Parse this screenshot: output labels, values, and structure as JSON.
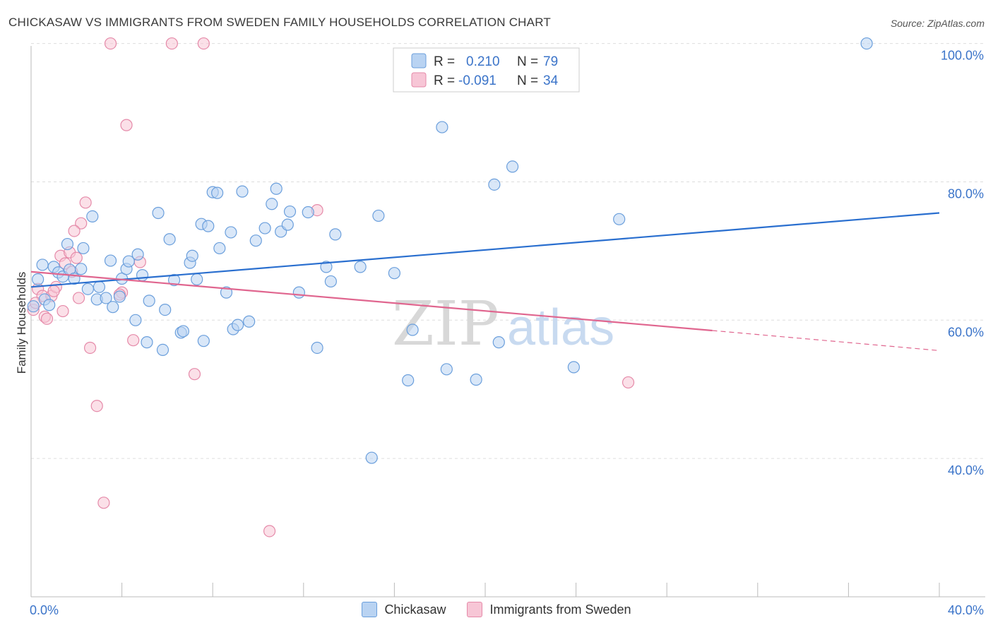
{
  "title": "CHICKASAW VS IMMIGRANTS FROM SWEDEN FAMILY HOUSEHOLDS CORRELATION CHART",
  "source": "Source: ZipAtlas.com",
  "watermark": {
    "zip": "ZIP",
    "atlas": "atlas"
  },
  "colors": {
    "blue_fill": "#b9d3f2",
    "blue_stroke": "#6b9fdc",
    "blue_line": "#2a6fcf",
    "pink_fill": "#f7c6d6",
    "pink_stroke": "#e58aa9",
    "pink_line": "#e0668f",
    "axis_text": "#3b74c9",
    "grid": "#dddddd"
  },
  "stats_legend": [
    {
      "r_label": "R =",
      "r_value": "0.210",
      "n_label": "N =",
      "n_value": "79",
      "color": "blue"
    },
    {
      "r_label": "R =",
      "r_value": "-0.091",
      "n_label": "N =",
      "n_value": "34",
      "color": "pink"
    }
  ],
  "chart_data": {
    "type": "scatter",
    "title": "CHICKASAW VS IMMIGRANTS FROM SWEDEN FAMILY HOUSEHOLDS CORRELATION CHART",
    "xlabel": "",
    "ylabel": "Family Households",
    "xlim": [
      0,
      40
    ],
    "ylim": [
      20,
      102
    ],
    "x_tick_labels": [
      "0.0%",
      "40.0%"
    ],
    "y_ticks": [
      40,
      60,
      80,
      100
    ],
    "y_tick_labels": [
      "40.0%",
      "60.0%",
      "80.0%",
      "100.0%"
    ],
    "grid": true,
    "series": [
      {
        "name": "Chickasaw",
        "color": "blue",
        "points": [
          [
            0.3,
            65.9
          ],
          [
            0.5,
            68.0
          ],
          [
            0.6,
            63.0
          ],
          [
            0.8,
            62.2
          ],
          [
            1.0,
            67.7
          ],
          [
            1.2,
            66.9
          ],
          [
            1.4,
            66.3
          ],
          [
            1.6,
            71.0
          ],
          [
            1.7,
            67.3
          ],
          [
            1.9,
            66.0
          ],
          [
            2.2,
            67.4
          ],
          [
            2.3,
            70.4
          ],
          [
            2.5,
            64.5
          ],
          [
            2.7,
            75.0
          ],
          [
            2.9,
            63.0
          ],
          [
            3.0,
            64.8
          ],
          [
            3.3,
            63.2
          ],
          [
            3.5,
            68.6
          ],
          [
            3.6,
            61.9
          ],
          [
            3.9,
            63.4
          ],
          [
            4.0,
            66.0
          ],
          [
            4.2,
            67.4
          ],
          [
            4.3,
            68.5
          ],
          [
            4.6,
            60.0
          ],
          [
            4.7,
            69.5
          ],
          [
            4.9,
            66.5
          ],
          [
            5.1,
            56.8
          ],
          [
            5.2,
            62.8
          ],
          [
            5.6,
            75.5
          ],
          [
            5.8,
            55.7
          ],
          [
            5.9,
            61.5
          ],
          [
            6.1,
            71.7
          ],
          [
            6.3,
            65.8
          ],
          [
            6.6,
            58.2
          ],
          [
            6.7,
            58.4
          ],
          [
            7.0,
            68.3
          ],
          [
            7.1,
            69.3
          ],
          [
            7.3,
            65.9
          ],
          [
            7.5,
            73.9
          ],
          [
            7.6,
            57.0
          ],
          [
            7.8,
            73.6
          ],
          [
            8.0,
            78.5
          ],
          [
            8.2,
            78.4
          ],
          [
            8.3,
            70.4
          ],
          [
            8.6,
            64.0
          ],
          [
            8.8,
            72.7
          ],
          [
            8.9,
            58.7
          ],
          [
            9.1,
            59.3
          ],
          [
            9.3,
            78.6
          ],
          [
            9.6,
            59.8
          ],
          [
            9.9,
            71.5
          ],
          [
            10.3,
            73.3
          ],
          [
            10.6,
            76.8
          ],
          [
            10.8,
            79.0
          ],
          [
            11.0,
            72.8
          ],
          [
            11.3,
            73.8
          ],
          [
            11.4,
            75.7
          ],
          [
            11.8,
            64.0
          ],
          [
            12.2,
            75.6
          ],
          [
            12.6,
            56.0
          ],
          [
            13.0,
            67.7
          ],
          [
            13.2,
            65.6
          ],
          [
            13.4,
            72.4
          ],
          [
            14.5,
            67.7
          ],
          [
            15.0,
            40.1
          ],
          [
            15.3,
            75.1
          ],
          [
            16.0,
            66.8
          ],
          [
            16.6,
            51.3
          ],
          [
            16.8,
            58.6
          ],
          [
            18.1,
            87.9
          ],
          [
            18.3,
            52.9
          ],
          [
            19.6,
            51.4
          ],
          [
            20.4,
            79.6
          ],
          [
            20.6,
            56.8
          ],
          [
            21.2,
            82.2
          ],
          [
            23.9,
            53.2
          ],
          [
            25.9,
            74.6
          ],
          [
            36.8,
            100.0
          ],
          [
            0.1,
            62.0
          ]
        ]
      },
      {
        "name": "Immigrants from Sweden",
        "color": "pink",
        "points": [
          [
            0.1,
            61.5
          ],
          [
            0.3,
            64.5
          ],
          [
            0.5,
            63.5
          ],
          [
            0.6,
            60.5
          ],
          [
            0.7,
            60.2
          ],
          [
            0.9,
            63.5
          ],
          [
            1.1,
            64.8
          ],
          [
            1.3,
            69.3
          ],
          [
            1.4,
            61.3
          ],
          [
            1.5,
            68.2
          ],
          [
            1.7,
            69.8
          ],
          [
            1.8,
            67.0
          ],
          [
            2.0,
            69.0
          ],
          [
            2.1,
            63.2
          ],
          [
            2.2,
            74.0
          ],
          [
            2.4,
            77.0
          ],
          [
            2.6,
            56.0
          ],
          [
            1.9,
            72.9
          ],
          [
            2.9,
            47.6
          ],
          [
            3.2,
            33.6
          ],
          [
            3.5,
            100.0
          ],
          [
            4.0,
            64.0
          ],
          [
            4.2,
            88.2
          ],
          [
            4.5,
            57.1
          ],
          [
            4.8,
            68.4
          ],
          [
            6.2,
            100.0
          ],
          [
            7.2,
            52.2
          ],
          [
            7.6,
            100.0
          ],
          [
            10.5,
            29.5
          ],
          [
            12.6,
            75.9
          ],
          [
            26.3,
            51.0
          ],
          [
            0.2,
            62.5
          ],
          [
            1.0,
            64.2
          ],
          [
            3.9,
            63.7
          ]
        ]
      }
    ],
    "trend_lines": [
      {
        "series": "Chickasaw",
        "x": [
          0,
          40
        ],
        "y": [
          64.8,
          75.5
        ],
        "style": "solid"
      },
      {
        "series": "Immigrants from Sweden",
        "x": [
          0,
          30
        ],
        "y": [
          67.0,
          58.5
        ],
        "style": "solid"
      },
      {
        "series": "Immigrants from Sweden",
        "x": [
          30,
          40
        ],
        "y": [
          58.5,
          55.6
        ],
        "style": "dashed"
      }
    ],
    "legend_position": "bottom-center"
  }
}
